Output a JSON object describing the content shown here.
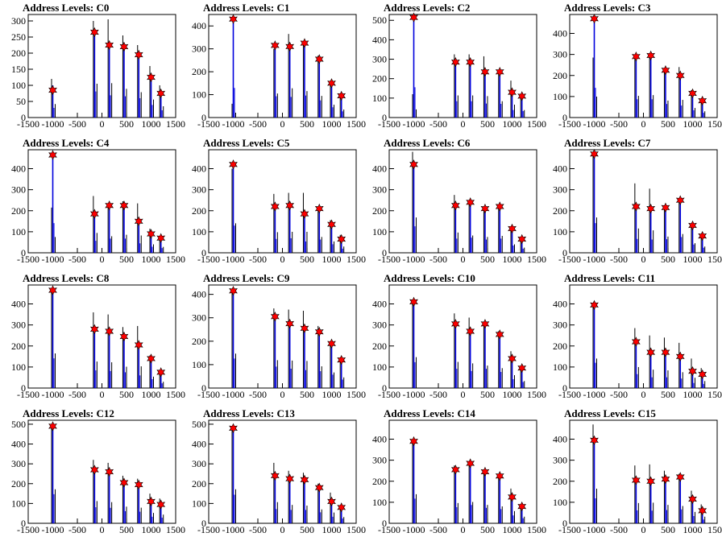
{
  "chart_data": [
    {
      "type": "histogram",
      "title": "Address Levels: C0",
      "xlim": [
        -1500,
        1500
      ],
      "ylim": [
        0,
        320
      ],
      "yticks": [
        0,
        50,
        100,
        150,
        200,
        250,
        300
      ],
      "xticks": [
        -1500,
        -1000,
        -500,
        0,
        500,
        1000,
        1500
      ],
      "peaks_x": [
        -1000,
        -150,
        150,
        450,
        750,
        1000,
        1200
      ],
      "black_hist": [
        120,
        300,
        305,
        255,
        225,
        160,
        100
      ],
      "blue_hist": [
        100,
        270,
        230,
        220,
        200,
        130,
        75
      ],
      "fit_markers": [
        85,
        265,
        225,
        220,
        195,
        125,
        75
      ]
    },
    {
      "type": "histogram",
      "title": "Address Levels: C1",
      "xlim": [
        -1500,
        1500
      ],
      "ylim": [
        0,
        450
      ],
      "yticks": [
        0,
        100,
        200,
        300,
        400
      ],
      "xticks": [
        -1500,
        -1000,
        -500,
        0,
        500,
        1000,
        1500
      ],
      "peaks_x": [
        -1000,
        -150,
        150,
        450,
        750,
        1000,
        1200
      ],
      "black_hist": [
        60,
        300,
        365,
        330,
        270,
        160,
        100
      ],
      "blue_hist": [
        430,
        310,
        300,
        320,
        250,
        150,
        90
      ],
      "fit_markers": [
        430,
        315,
        310,
        325,
        255,
        150,
        95
      ]
    },
    {
      "type": "histogram",
      "title": "Address Levels: C2",
      "xlim": [
        -1500,
        1500
      ],
      "ylim": [
        0,
        530
      ],
      "yticks": [
        0,
        100,
        200,
        300,
        400,
        500
      ],
      "xticks": [
        -1500,
        -1000,
        -500,
        0,
        500,
        1000,
        1500
      ],
      "peaks_x": [
        -1000,
        -150,
        150,
        450,
        750,
        1000,
        1200
      ],
      "black_hist": [
        120,
        325,
        325,
        315,
        240,
        190,
        110
      ],
      "blue_hist": [
        520,
        280,
        280,
        240,
        235,
        130,
        110
      ],
      "fit_markers": [
        515,
        285,
        285,
        235,
        235,
        130,
        110
      ]
    },
    {
      "type": "histogram",
      "title": "Address Levels: C3",
      "xlim": [
        -1500,
        1500
      ],
      "ylim": [
        0,
        490
      ],
      "yticks": [
        0,
        100,
        200,
        300,
        400
      ],
      "xticks": [
        -1500,
        -1000,
        -500,
        0,
        500,
        1000,
        1500
      ],
      "peaks_x": [
        -1000,
        -150,
        150,
        450,
        750,
        1000,
        1200
      ],
      "black_hist": [
        285,
        295,
        305,
        230,
        240,
        130,
        85
      ],
      "blue_hist": [
        470,
        290,
        290,
        215,
        190,
        115,
        75
      ],
      "fit_markers": [
        470,
        290,
        295,
        225,
        200,
        115,
        80
      ]
    },
    {
      "type": "histogram",
      "title": "Address Levels: C4",
      "xlim": [
        -1500,
        1500
      ],
      "ylim": [
        0,
        490
      ],
      "yticks": [
        0,
        100,
        200,
        300,
        400
      ],
      "xticks": [
        -1500,
        -1000,
        -500,
        0,
        500,
        1000,
        1500
      ],
      "peaks_x": [
        -1000,
        -150,
        150,
        450,
        750,
        1000,
        1200
      ],
      "black_hist": [
        215,
        270,
        225,
        245,
        235,
        115,
        80
      ],
      "blue_hist": [
        470,
        190,
        225,
        225,
        150,
        95,
        75
      ],
      "fit_markers": [
        465,
        185,
        225,
        225,
        150,
        90,
        70
      ]
    },
    {
      "type": "histogram",
      "title": "Address Levels: C5",
      "xlim": [
        -1500,
        1500
      ],
      "ylim": [
        0,
        490
      ],
      "yticks": [
        0,
        100,
        200,
        300,
        400
      ],
      "xticks": [
        -1500,
        -1000,
        -500,
        0,
        500,
        1000,
        1500
      ],
      "peaks_x": [
        -1000,
        -150,
        150,
        450,
        750,
        1000,
        1200
      ],
      "black_hist": [
        400,
        280,
        285,
        285,
        215,
        155,
        85
      ],
      "blue_hist": [
        430,
        220,
        230,
        180,
        210,
        135,
        65
      ],
      "fit_markers": [
        420,
        220,
        225,
        185,
        210,
        135,
        65
      ]
    },
    {
      "type": "histogram",
      "title": "Address Levels: C6",
      "xlim": [
        -1500,
        1500
      ],
      "ylim": [
        0,
        490
      ],
      "yticks": [
        0,
        100,
        200,
        300,
        400
      ],
      "xticks": [
        -1500,
        -1000,
        -500,
        0,
        500,
        1000,
        1500
      ],
      "peaks_x": [
        -1000,
        -150,
        150,
        450,
        750,
        1000,
        1200
      ],
      "black_hist": [
        480,
        275,
        235,
        215,
        230,
        115,
        70
      ],
      "blue_hist": [
        420,
        225,
        240,
        210,
        225,
        115,
        65
      ],
      "fit_markers": [
        420,
        225,
        240,
        210,
        220,
        115,
        65
      ]
    },
    {
      "type": "histogram",
      "title": "Address Levels: C7",
      "xlim": [
        -1500,
        1500
      ],
      "ylim": [
        0,
        490
      ],
      "yticks": [
        0,
        100,
        200,
        300,
        400
      ],
      "xticks": [
        -1500,
        -1000,
        -500,
        0,
        500,
        1000,
        1500
      ],
      "peaks_x": [
        -1000,
        -150,
        150,
        450,
        750,
        1000,
        1200
      ],
      "black_hist": [
        480,
        330,
        305,
        220,
        255,
        130,
        85
      ],
      "blue_hist": [
        470,
        220,
        210,
        215,
        250,
        130,
        80
      ],
      "fit_markers": [
        470,
        220,
        210,
        215,
        250,
        130,
        80
      ]
    },
    {
      "type": "histogram",
      "title": "Address Levels: C8",
      "xlim": [
        -1500,
        1500
      ],
      "ylim": [
        0,
        490
      ],
      "yticks": [
        0,
        100,
        200,
        300,
        400
      ],
      "xticks": [
        -1500,
        -1000,
        -500,
        0,
        500,
        1000,
        1500
      ],
      "peaks_x": [
        -1000,
        -150,
        150,
        450,
        750,
        1000,
        1200
      ],
      "black_hist": [
        470,
        360,
        350,
        290,
        295,
        155,
        85
      ],
      "blue_hist": [
        470,
        280,
        270,
        250,
        200,
        140,
        75
      ],
      "fit_markers": [
        465,
        280,
        270,
        245,
        205,
        140,
        75
      ]
    },
    {
      "type": "histogram",
      "title": "Address Levels: C9",
      "xlim": [
        -1500,
        1500
      ],
      "ylim": [
        0,
        440
      ],
      "yticks": [
        0,
        100,
        200,
        300,
        400
      ],
      "xticks": [
        -1500,
        -1000,
        -500,
        0,
        500,
        1000,
        1500
      ],
      "peaks_x": [
        -1000,
        -150,
        150,
        450,
        750,
        1000,
        1200
      ],
      "black_hist": [
        420,
        340,
        335,
        330,
        265,
        190,
        130
      ],
      "blue_hist": [
        420,
        305,
        275,
        255,
        240,
        190,
        120
      ],
      "fit_markers": [
        415,
        305,
        275,
        255,
        240,
        190,
        120
      ]
    },
    {
      "type": "histogram",
      "title": "Address Levels: C10",
      "xlim": [
        -1500,
        1500
      ],
      "ylim": [
        0,
        490
      ],
      "yticks": [
        0,
        100,
        200,
        300,
        400
      ],
      "xticks": [
        -1500,
        -1000,
        -500,
        0,
        500,
        1000,
        1500
      ],
      "peaks_x": [
        -1000,
        -150,
        150,
        450,
        750,
        1000,
        1200
      ],
      "black_hist": [
        420,
        355,
        335,
        305,
        270,
        175,
        95
      ],
      "blue_hist": [
        410,
        305,
        270,
        305,
        255,
        140,
        95
      ],
      "fit_markers": [
        410,
        305,
        270,
        305,
        255,
        140,
        95
      ]
    },
    {
      "type": "histogram",
      "title": "Address Levels: C11",
      "xlim": [
        -1500,
        1500
      ],
      "ylim": [
        0,
        490
      ],
      "yticks": [
        0,
        100,
        200,
        300,
        400
      ],
      "xticks": [
        -1500,
        -1000,
        -500,
        0,
        500,
        1000,
        1500
      ],
      "peaks_x": [
        -1000,
        -150,
        150,
        450,
        750,
        1000,
        1200
      ],
      "black_hist": [
        400,
        285,
        250,
        240,
        215,
        140,
        95
      ],
      "blue_hist": [
        400,
        220,
        170,
        170,
        150,
        80,
        65
      ],
      "fit_markers": [
        395,
        220,
        170,
        170,
        150,
        80,
        65
      ]
    },
    {
      "type": "histogram",
      "title": "Address Levels: C12",
      "xlim": [
        -1500,
        1500
      ],
      "ylim": [
        0,
        520
      ],
      "yticks": [
        0,
        100,
        200,
        300,
        400,
        500
      ],
      "xticks": [
        -1500,
        -1000,
        -500,
        0,
        500,
        1000,
        1500
      ],
      "peaks_x": [
        -1000,
        -150,
        150,
        450,
        750,
        1000,
        1200
      ],
      "black_hist": [
        490,
        320,
        305,
        240,
        225,
        150,
        125
      ],
      "blue_hist": [
        490,
        270,
        260,
        205,
        195,
        110,
        95
      ],
      "fit_markers": [
        490,
        270,
        260,
        205,
        195,
        110,
        95
      ]
    },
    {
      "type": "histogram",
      "title": "Address Levels: C13",
      "xlim": [
        -1500,
        1500
      ],
      "ylim": [
        0,
        520
      ],
      "yticks": [
        0,
        100,
        200,
        300,
        400,
        500
      ],
      "xticks": [
        -1500,
        -1000,
        -500,
        0,
        500,
        1000,
        1500
      ],
      "peaks_x": [
        -1000,
        -150,
        150,
        450,
        750,
        1000,
        1200
      ],
      "black_hist": [
        490,
        305,
        265,
        255,
        200,
        155,
        90
      ],
      "blue_hist": [
        480,
        240,
        225,
        225,
        185,
        110,
        80
      ],
      "fit_markers": [
        480,
        240,
        225,
        220,
        180,
        110,
        80
      ]
    },
    {
      "type": "histogram",
      "title": "Address Levels: C14",
      "xlim": [
        -1500,
        1500
      ],
      "ylim": [
        0,
        490
      ],
      "yticks": [
        0,
        100,
        200,
        300,
        400
      ],
      "xticks": [
        -1500,
        -1000,
        -500,
        0,
        500,
        1000,
        1500
      ],
      "peaks_x": [
        -1000,
        -150,
        150,
        450,
        750,
        1000,
        1200
      ],
      "black_hist": [
        395,
        275,
        290,
        250,
        230,
        165,
        90
      ],
      "blue_hist": [
        390,
        255,
        290,
        245,
        225,
        125,
        80
      ],
      "fit_markers": [
        390,
        255,
        285,
        245,
        225,
        125,
        80
      ]
    },
    {
      "type": "histogram",
      "title": "Address Levels: C15",
      "xlim": [
        -1500,
        1500
      ],
      "ylim": [
        0,
        490
      ],
      "yticks": [
        0,
        100,
        200,
        300,
        400
      ],
      "xticks": [
        -1500,
        -1000,
        -500,
        0,
        500,
        1000,
        1500
      ],
      "peaks_x": [
        -1000,
        -150,
        150,
        450,
        750,
        1000,
        1200
      ],
      "black_hist": [
        470,
        275,
        280,
        250,
        235,
        155,
        90
      ],
      "blue_hist": [
        395,
        205,
        200,
        210,
        220,
        115,
        60
      ],
      "fit_markers": [
        395,
        205,
        200,
        210,
        220,
        115,
        60
      ]
    }
  ],
  "colors": {
    "black_hist": "#000000",
    "blue_hist": "#0000dd",
    "fit_markers": "#ff0000",
    "marker_outline": "#000000"
  }
}
